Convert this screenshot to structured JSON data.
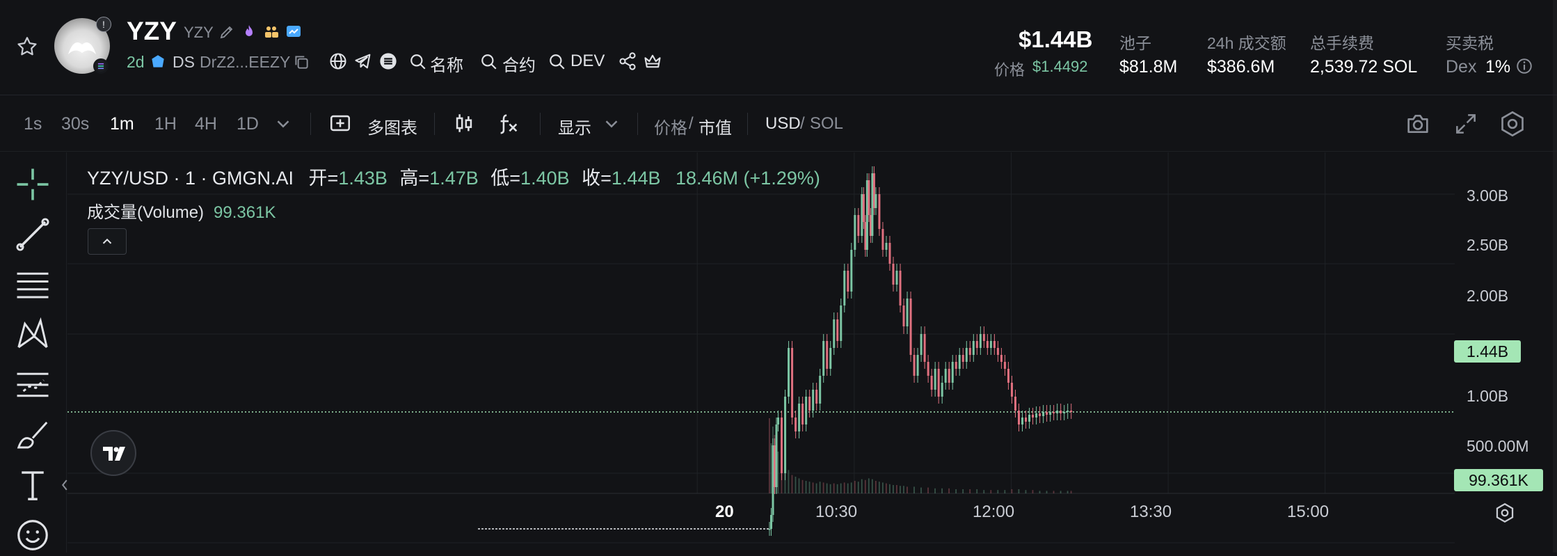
{
  "token": {
    "symbol": "YZY",
    "sub_symbol": "YZY",
    "age": "2d",
    "ds_label": "DS",
    "address": "DrZ2...EEZY",
    "badge": "!"
  },
  "header_links": {
    "name_search": "名称",
    "contract_search": "合约",
    "dev_search": "DEV"
  },
  "stats": {
    "market_cap": "$1.44B",
    "price_label": "价格",
    "price_value": "$1.4492",
    "pool_label": "池子",
    "pool_value": "$81.8M",
    "volume_label": "24h 成交额",
    "volume_value": "$386.6M",
    "fees_label": "总手续费",
    "fees_value": "2,539.72 SOL",
    "tax_label": "买卖税",
    "tax_dex": "Dex",
    "tax_value": "1%"
  },
  "toolbar": {
    "timeframes": [
      "1s",
      "30s",
      "1m",
      "1H",
      "4H",
      "1D"
    ],
    "active_timeframe": "1m",
    "multi_chart": "多图表",
    "display": "显示",
    "price_toggle": "价格",
    "mcap_toggle": "市值",
    "sep": "/",
    "usd": "USD",
    "sol": "SOL"
  },
  "legend": {
    "pair": "YZY/USD · 1 · GMGN.AI",
    "open_label": "开=",
    "open": "1.43B",
    "high_label": "高=",
    "high": "1.47B",
    "low_label": "低=",
    "low": "1.40B",
    "close_label": "收=",
    "close": "1.44B",
    "change": "18.46M (+1.29%)",
    "volume_label": "成交量(Volume)",
    "volume": "99.361K"
  },
  "colors": {
    "up": "#7cc6a4",
    "down": "#e0707f",
    "tag": "#a4e6b5",
    "background": "#121316"
  },
  "icons": [
    "star-icon",
    "edit-icon",
    "fire-icon",
    "people-icon",
    "chart-badge-icon",
    "copy-icon",
    "globe-icon",
    "telegram-icon",
    "list-icon",
    "search-icon",
    "share-icon",
    "crown-icon",
    "candles-icon",
    "fx-icon",
    "camera-icon",
    "expand-icon",
    "settings-icon",
    "crosshair-icon",
    "trendline-icon",
    "fib-icon",
    "pattern-icon",
    "projection-icon",
    "brush-icon",
    "text-icon",
    "emoji-icon"
  ],
  "chart_data": {
    "type": "candlestick",
    "y_axis_labels": [
      "3.00B",
      "2.50B",
      "2.00B",
      "1.00B",
      "500.00M"
    ],
    "x_axis_labels": [
      "20",
      "10:30",
      "12:00",
      "13:30",
      "15:00"
    ],
    "last_price_tag": "1.44B",
    "last_volume_tag": "99.361K",
    "ylim": [
      0.25,
      3.3
    ],
    "y_unit": "B",
    "x_unit": "minutes from 09:00",
    "x_range": [
      0,
      420
    ],
    "pre_launch": {
      "x_start": 0,
      "x_end": 71,
      "value": 0.6
    },
    "series_close": [
      [
        71,
        0.6
      ],
      [
        72,
        0.7
      ],
      [
        73,
        1.2
      ],
      [
        74,
        0.9
      ],
      [
        75,
        1.35
      ],
      [
        76,
        1.4
      ],
      [
        78,
        1.0
      ],
      [
        80,
        1.55
      ],
      [
        82,
        1.9
      ],
      [
        84,
        1.4
      ],
      [
        86,
        1.3
      ],
      [
        88,
        1.5
      ],
      [
        90,
        1.35
      ],
      [
        92,
        1.55
      ],
      [
        94,
        1.45
      ],
      [
        96,
        1.6
      ],
      [
        98,
        1.5
      ],
      [
        100,
        1.7
      ],
      [
        102,
        1.95
      ],
      [
        104,
        1.75
      ],
      [
        106,
        1.9
      ],
      [
        108,
        2.1
      ],
      [
        110,
        1.95
      ],
      [
        112,
        2.2
      ],
      [
        114,
        2.45
      ],
      [
        116,
        2.3
      ],
      [
        118,
        2.6
      ],
      [
        120,
        2.85
      ],
      [
        122,
        2.7
      ],
      [
        124,
        3.0
      ],
      [
        125,
        2.8
      ],
      [
        126,
        2.6
      ],
      [
        127,
        3.1
      ],
      [
        128,
        2.85
      ],
      [
        129,
        2.7
      ],
      [
        130,
        3.15
      ],
      [
        131,
        2.9
      ],
      [
        132,
        3.0
      ],
      [
        134,
        2.75
      ],
      [
        136,
        2.6
      ],
      [
        138,
        2.65
      ],
      [
        140,
        2.5
      ],
      [
        142,
        2.35
      ],
      [
        144,
        2.45
      ],
      [
        146,
        2.2
      ],
      [
        148,
        2.05
      ],
      [
        150,
        2.25
      ],
      [
        152,
        1.85
      ],
      [
        154,
        1.7
      ],
      [
        156,
        1.85
      ],
      [
        158,
        2.0
      ],
      [
        160,
        1.8
      ],
      [
        162,
        1.7
      ],
      [
        164,
        1.6
      ],
      [
        166,
        1.75
      ],
      [
        168,
        1.55
      ],
      [
        170,
        1.65
      ],
      [
        172,
        1.75
      ],
      [
        174,
        1.65
      ],
      [
        176,
        1.8
      ],
      [
        178,
        1.75
      ],
      [
        180,
        1.85
      ],
      [
        182,
        1.8
      ],
      [
        184,
        1.9
      ],
      [
        186,
        1.85
      ],
      [
        188,
        1.95
      ],
      [
        190,
        1.9
      ],
      [
        192,
        2.0
      ],
      [
        194,
        1.95
      ],
      [
        196,
        1.9
      ],
      [
        198,
        1.95
      ],
      [
        200,
        1.9
      ],
      [
        202,
        1.85
      ],
      [
        204,
        1.8
      ],
      [
        206,
        1.75
      ],
      [
        208,
        1.65
      ],
      [
        210,
        1.55
      ],
      [
        212,
        1.45
      ],
      [
        214,
        1.35
      ],
      [
        216,
        1.4
      ],
      [
        218,
        1.37
      ],
      [
        220,
        1.42
      ],
      [
        222,
        1.4
      ],
      [
        224,
        1.43
      ],
      [
        226,
        1.41
      ],
      [
        228,
        1.44
      ],
      [
        230,
        1.42
      ],
      [
        232,
        1.44
      ],
      [
        234,
        1.43
      ],
      [
        236,
        1.45
      ],
      [
        238,
        1.43
      ],
      [
        240,
        1.44
      ],
      [
        242,
        1.45
      ],
      [
        244,
        1.44
      ]
    ],
    "volume": [
      [
        71,
        0.9
      ],
      [
        72,
        0.6
      ],
      [
        73,
        0.8
      ],
      [
        74,
        0.7
      ],
      [
        75,
        0.55
      ],
      [
        76,
        0.5
      ],
      [
        78,
        0.4
      ],
      [
        80,
        0.3
      ],
      [
        82,
        0.28
      ],
      [
        84,
        0.22
      ],
      [
        86,
        0.2
      ],
      [
        88,
        0.18
      ],
      [
        90,
        0.16
      ],
      [
        92,
        0.15
      ],
      [
        94,
        0.14
      ],
      [
        96,
        0.13
      ],
      [
        98,
        0.12
      ],
      [
        100,
        0.14
      ],
      [
        102,
        0.13
      ],
      [
        104,
        0.12
      ],
      [
        106,
        0.11
      ],
      [
        108,
        0.12
      ],
      [
        110,
        0.11
      ],
      [
        112,
        0.12
      ],
      [
        114,
        0.13
      ],
      [
        116,
        0.12
      ],
      [
        118,
        0.13
      ],
      [
        120,
        0.15
      ],
      [
        122,
        0.14
      ],
      [
        124,
        0.17
      ],
      [
        126,
        0.16
      ],
      [
        128,
        0.18
      ],
      [
        130,
        0.17
      ],
      [
        132,
        0.15
      ],
      [
        134,
        0.14
      ],
      [
        136,
        0.13
      ],
      [
        138,
        0.12
      ],
      [
        140,
        0.11
      ],
      [
        142,
        0.1
      ],
      [
        144,
        0.1
      ],
      [
        146,
        0.09
      ],
      [
        148,
        0.09
      ],
      [
        150,
        0.08
      ],
      [
        154,
        0.08
      ],
      [
        158,
        0.07
      ],
      [
        162,
        0.07
      ],
      [
        166,
        0.06
      ],
      [
        170,
        0.06
      ],
      [
        174,
        0.06
      ],
      [
        178,
        0.05
      ],
      [
        182,
        0.05
      ],
      [
        186,
        0.05
      ],
      [
        190,
        0.05
      ],
      [
        194,
        0.04
      ],
      [
        198,
        0.04
      ],
      [
        202,
        0.04
      ],
      [
        206,
        0.04
      ],
      [
        210,
        0.05
      ],
      [
        214,
        0.05
      ],
      [
        218,
        0.04
      ],
      [
        222,
        0.04
      ],
      [
        226,
        0.03
      ],
      [
        230,
        0.03
      ],
      [
        234,
        0.03
      ],
      [
        238,
        0.03
      ],
      [
        242,
        0.03
      ],
      [
        244,
        0.03
      ]
    ]
  }
}
